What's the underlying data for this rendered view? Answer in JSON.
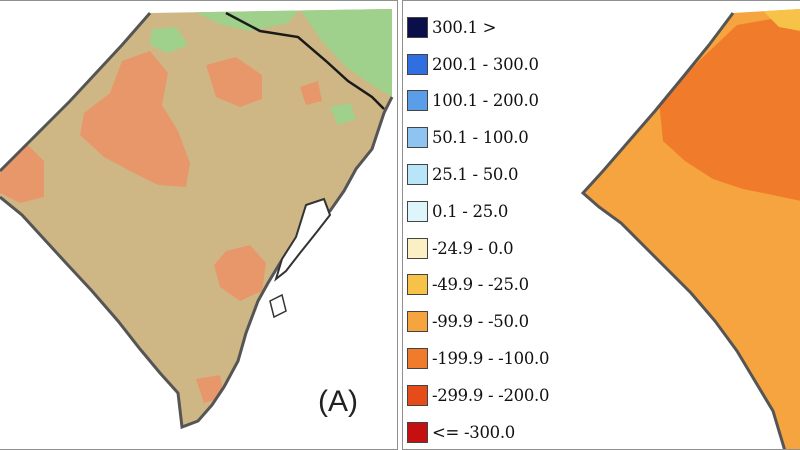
{
  "panel_a": {
    "label": "(A)"
  },
  "legend": {
    "items": [
      {
        "label": "300.1 >",
        "color": "#0a0f4a"
      },
      {
        "label": "200.1 - 300.0",
        "color": "#2f6fe0"
      },
      {
        "label": "100.1 - 200.0",
        "color": "#5a9ee8"
      },
      {
        "label": "50.1 - 100.0",
        "color": "#8fc3f0"
      },
      {
        "label": "25.1 - 50.0",
        "color": "#b8e6f8"
      },
      {
        "label": "0.1 - 25.0",
        "color": "#ddf5fb"
      },
      {
        "label": "-24.9 - 0.0",
        "color": "#faf0c4"
      },
      {
        "label": "-49.9 - -25.0",
        "color": "#f6c247"
      },
      {
        "label": "-99.9 - -50.0",
        "color": "#f5a43f"
      },
      {
        "label": "-199.9 - -100.0",
        "color": "#f07b2a"
      },
      {
        "label": "-299.9 - -200.0",
        "color": "#e54c1a"
      },
      {
        "label": "<= -300.0",
        "color": "#c41010"
      }
    ]
  },
  "map_colors": {
    "panel_a_base": "#cfb785",
    "panel_a_patch": "#e8976a",
    "panel_a_green": "#9fd08c",
    "panel_b_base": "#f5a43f",
    "panel_b_patch": "#f07b2a",
    "panel_b_yellow": "#f6c247",
    "border": "#555555"
  }
}
